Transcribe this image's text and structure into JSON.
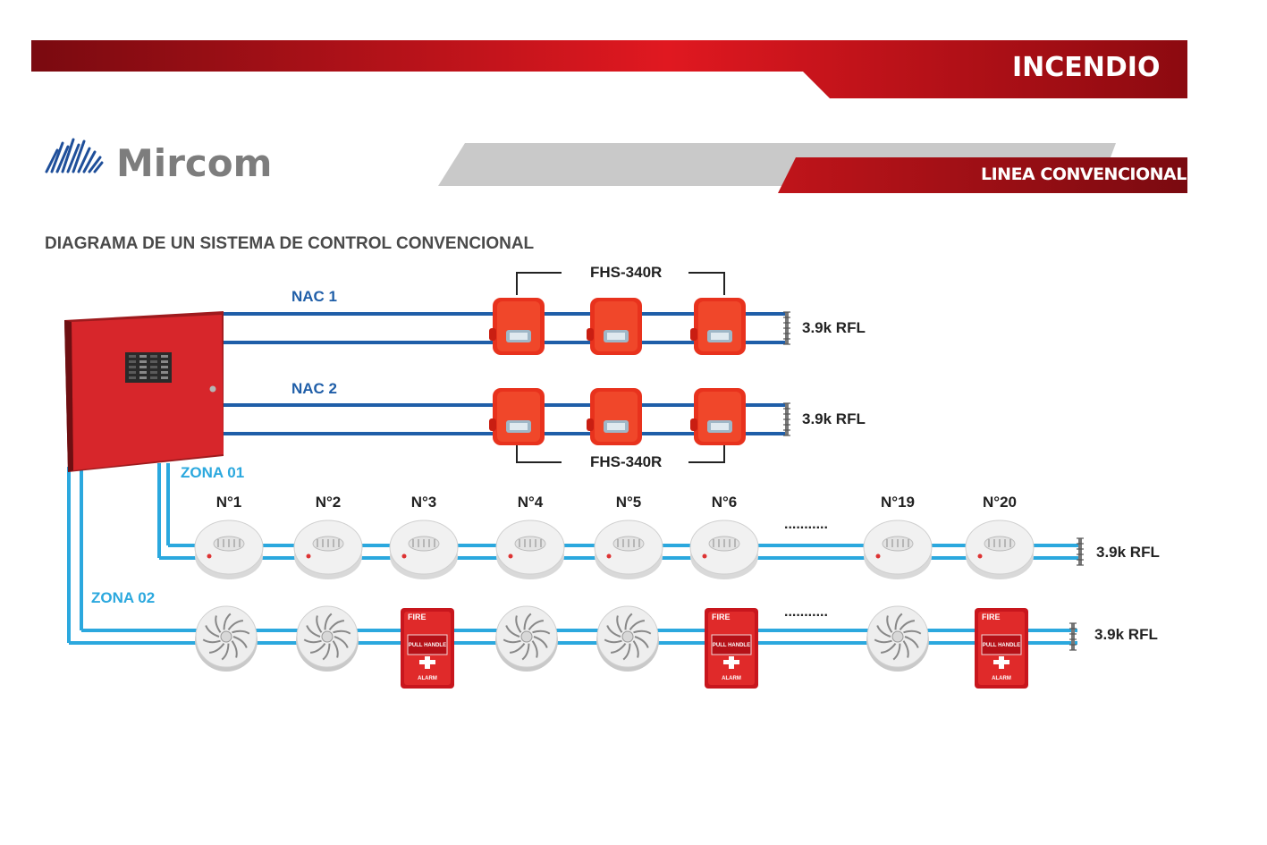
{
  "header": {
    "section_title": "INCENDIO",
    "subsection_title": "LINEA CONVENCIONAL"
  },
  "brand": {
    "logo_text": "Mircom",
    "logo_icon": "mircom-logo-icon"
  },
  "diagram": {
    "title": "DIAGRAMA DE UN SISTEMA DE CONTROL CONVENCIONAL",
    "nac1_label": "NAC 1",
    "nac2_label": "NAC 2",
    "fhs_top_label": "FHS-340R",
    "fhs_bottom_label": "FHS-340R",
    "rfl_nac1": "3.9k RFL",
    "rfl_nac2": "3.9k RFL",
    "rfl_zone1": "3.9k RFL",
    "rfl_zone2": "3.9k RFL",
    "zona1_label": "ZONA 01",
    "zona2_label": "ZONA 02",
    "zone1_numbers": [
      "N°1",
      "N°2",
      "N°3",
      "N°4",
      "N°5",
      "N°6",
      "N°19",
      "N°20"
    ],
    "ellipsis": "...........",
    "zone2_devices": [
      "heat",
      "heat",
      "pull",
      "heat",
      "heat",
      "pull",
      "heat",
      "pull"
    ],
    "pull_station": {
      "top": "FIRE",
      "middle": "PULL HANDLE",
      "bottom": "ALARM"
    },
    "colors": {
      "banner_red": "#c8101a",
      "nac_blue": "#1f5ea8",
      "zone_blue": "#2ba8de",
      "panel_red": "#d7262b"
    }
  }
}
